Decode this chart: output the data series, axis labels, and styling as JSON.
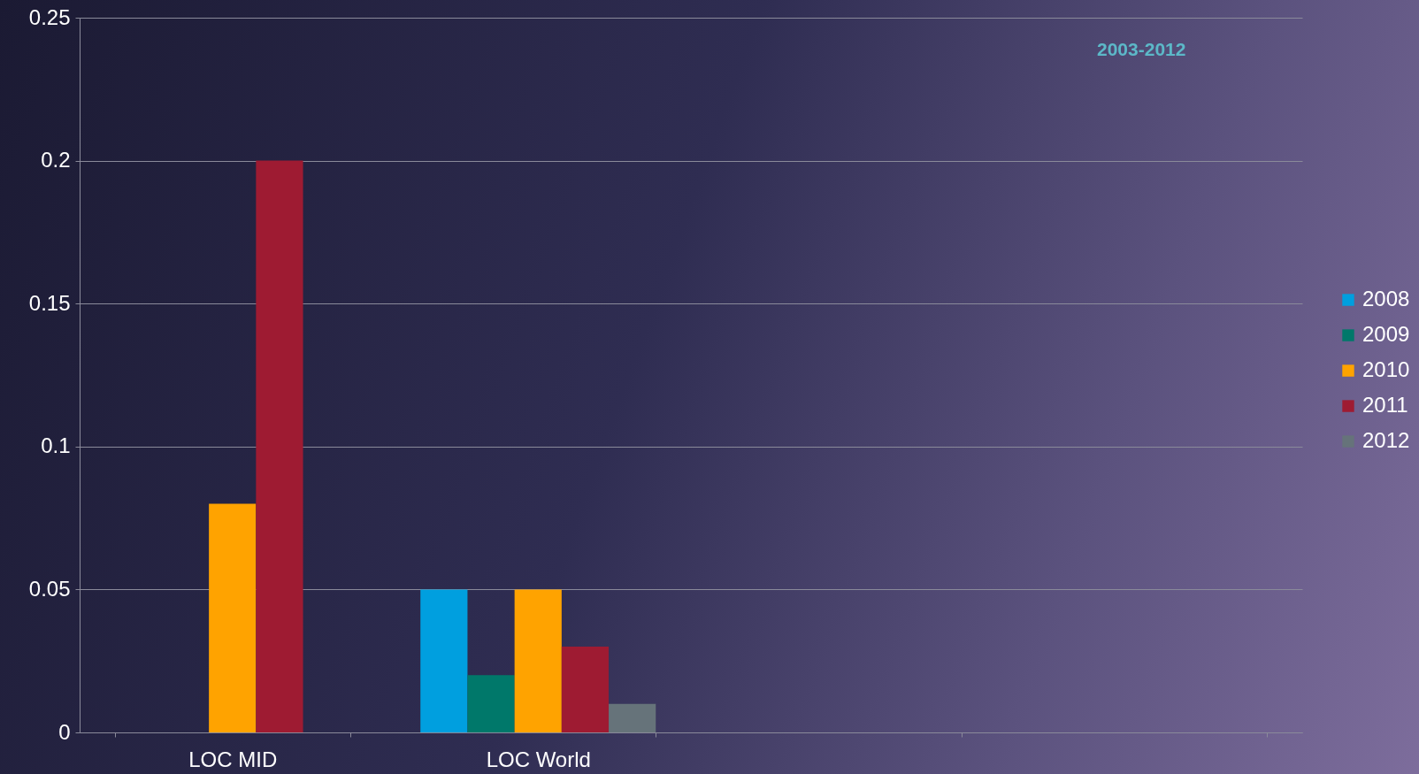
{
  "chart_data": {
    "type": "bar",
    "categories": [
      "LOC MID",
      "LOC World",
      null,
      null
    ],
    "series": [
      {
        "name": "2008",
        "color": "#009fdf",
        "values": [
          null,
          0.05,
          null,
          null
        ]
      },
      {
        "name": "2009",
        "color": "#00786a",
        "values": [
          null,
          0.02,
          null,
          null
        ]
      },
      {
        "name": "2010",
        "color": "#ffa300",
        "values": [
          0.08,
          0.05,
          null,
          null
        ]
      },
      {
        "name": "2011",
        "color": "#9e1b32",
        "values": [
          0.2,
          0.03,
          null,
          null
        ]
      },
      {
        "name": "2012",
        "color": "#66737a",
        "values": [
          null,
          0.01,
          null,
          null
        ]
      }
    ],
    "ylim": [
      0,
      0.25
    ],
    "yticks": [
      0,
      0.05,
      0.1,
      0.15,
      0.2,
      0.25
    ],
    "grid": "y",
    "legend": "right",
    "annotations": [
      "2003-2012"
    ]
  }
}
